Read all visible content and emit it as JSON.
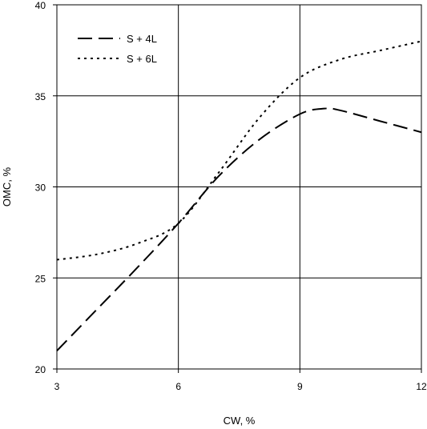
{
  "chart_data": {
    "type": "line",
    "xlabel": "CW, %",
    "ylabel": "OMC, %",
    "xlim": [
      3,
      12
    ],
    "ylim": [
      20,
      40
    ],
    "xticks": [
      3,
      6,
      9,
      12
    ],
    "yticks": [
      20,
      25,
      30,
      35,
      40
    ],
    "grid": true,
    "legend_position": "top-left",
    "series": [
      {
        "name": "S + 4L",
        "style": "dashed",
        "color": "#000000",
        "x": [
          3,
          4,
          5,
          6,
          7,
          8,
          9,
          9.6,
          10,
          11,
          12
        ],
        "y": [
          21,
          23.3,
          25.6,
          28,
          30.6,
          32.6,
          34,
          34.3,
          34.2,
          33.6,
          33
        ]
      },
      {
        "name": "S + 6L",
        "style": "dotted",
        "color": "#000000",
        "x": [
          3,
          4,
          5,
          6,
          7,
          8,
          9,
          10,
          11,
          12
        ],
        "y": [
          26,
          26.3,
          26.9,
          28,
          30.8,
          33.8,
          36,
          37,
          37.5,
          38
        ]
      }
    ]
  }
}
